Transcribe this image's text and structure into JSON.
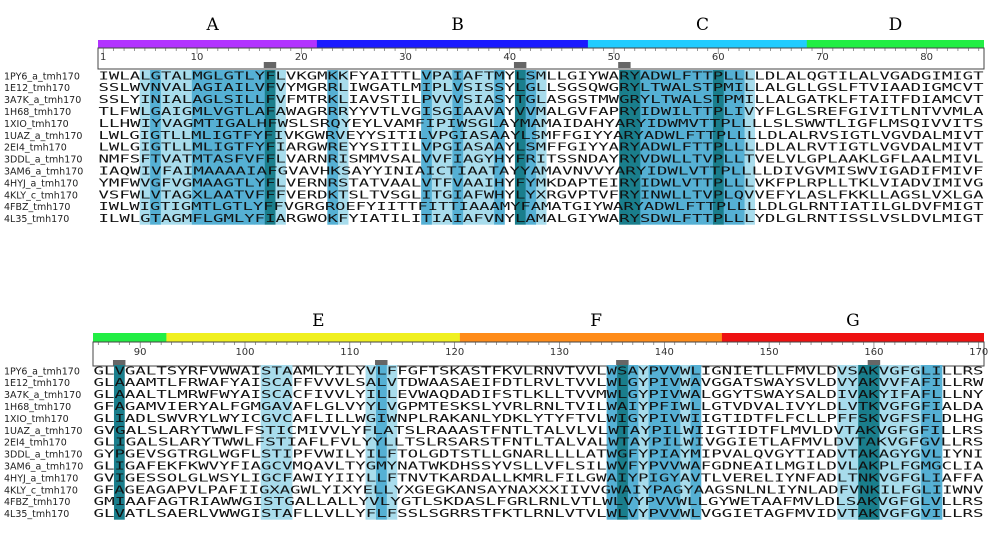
{
  "names": [
    "1PY6_a_tmh170",
    "1E12_tmh170",
    "3A7K_a_tmh170",
    "1H68_tmh170",
    "1XIO_tmh170",
    "1UAZ_a_tmh170",
    "2EI4_tmh170",
    "3DDL_a_tmh170",
    "3AM6_a_tmh170",
    "4HYJ_a_tmh170",
    "4KLY_c_tmh170",
    "4FBZ_tmh170",
    "4L35_tmh170"
  ],
  "colors": {
    "dark": "#1a7e8c",
    "mid": "#55b0d4",
    "light": "#a8dcec",
    "pale": "#cfeaf3"
  },
  "blocks": [
    {
      "start": 1,
      "end": 85,
      "rows": [
        "IWLALGTALMGLGTLYFLVKGMKKFYAITTLVPAIAFTMYLSMLLGIYWARYADWLFTTPLLLLDLALQGTILALVGADGIMIGT",
        "SSLWVNVALAGIAILVFVYMGRRLIWGATLMIPLVSISSYLGLLSGSQWGRYLTWALSTPMILLALGLLGSLFTVIAADIGMCVT",
        "SSLYINIALAGLSILLFVFMTRKLIAVSTILPVVVSIASYTGLASGSTMWGRYLTWALSTPMILLALGATKLFTAITFDIAMCVT",
        "TLFWLGAIGMLVGTLAFAWAGRRRYYVTLVGISGIAAVAYVVMALGVFAPRYIDWILTTPLIVYFLGLSREFGIVITLNTVVMLA",
        "LLHWIYVAGMTIGALHFWSLSRQYEYLVAMFIPIWSGLAYMAMAIDAHYARYIDWMVTTPLLLLSLSWWTLIGFLMSQIVVITS",
        "LWLGIGTLLMLIGTFYFIVKGWRVEYYSITILVPGIASAAYLSMFFGIYYARYADWLFTTPLLLLDLALRVSIGTLVGVDALMIVT",
        "LWLGIGTLLMLIGTFYFIARGWREYYSITILVPGIASAAYLSMFFGIYYARYADWLFTTPLLLLDLALRVTIGTLVGVDALMIVT",
        "NMFSFTVATMTASFVFFLVARNRISMMVSALVVFIAGYHYFRITSSNDAYRYVDWLLTVPLLTVELVLGPLAAKLGFLAALMIVL",
        "IAQWIVFAIMAAAAIAFGVAVHKSAYYINIAICTIAATAYYAMAVNVVYARYIDWLVTTPLLLLDIVGVMISWVIGADIFMIVF",
        "YMFWVGFVGMAAGTLYFLVERNRSTATVAALVTFVAAIHYFYMKDAPTEIRYIDWLVTTPLLLVKFPLRPLLTKLVIADVIMIVG",
        "VSFWLVTAGXLAATVFFFVERDKTSLTVSGLITGIAFWHYLYXRGVPTVFRYINWLLTVPLQVVEFYLASLFKKLLAGSLVXLGA",
        "IWLWIGTIGMTLGTLYFFVGRGROEFYIITTFITTIAAAMYFAMATGIYWARYADWLFTTPLLLLDLGLRNTIATILGLDVFMIGT",
        "ILWLGTAGMFLGMLYFIARGWOKFYIATILITIAIAFVNYLAMALGIYWARYSDWLFTTPLLLYDLGLRNTISSLVSLDVLMIGT"
      ],
      "dark": [
        17,
        41,
        51,
        52,
        60
      ],
      "mid": [
        6,
        10,
        11,
        12,
        13,
        14,
        15,
        16,
        23,
        32,
        35,
        39,
        42,
        53,
        54,
        55,
        56,
        57,
        58,
        59,
        61,
        62
      ],
      "light": [
        5,
        7,
        8,
        9,
        18,
        24,
        33,
        34,
        36,
        37,
        38,
        43,
        63
      ],
      "sections": [
        {
          "label": "A",
          "start": 1,
          "end": 22,
          "color": "#b233ff"
        },
        {
          "label": "B",
          "start": 22,
          "end": 48,
          "color": "#1a1aff"
        },
        {
          "label": "C",
          "start": 48,
          "end": 69,
          "color": "#22ccff"
        },
        {
          "label": "D",
          "start": 69,
          "end": 85,
          "color": "#22ee44"
        }
      ],
      "ticks": [
        "1",
        "10",
        "20",
        "30",
        "40",
        "50",
        "60",
        "70",
        "80"
      ],
      "markers": [
        17,
        41,
        51
      ]
    },
    {
      "start": 86,
      "end": 170,
      "rows": [
        "GLVGALTSYRFVWWAISTAAMLYILYVLFFGFTSKASTFKVLRNVTVVLWSAYPVVWLIGNIETLLFMVLDVSAKVGFGLILLRS",
        "GLAAAMTLFRWAFYAISCAFFVVVLSALVTDWAASAEIFDTLRVLTVVLWLGYPIVWAVGGATSWAYSVLDVYAKVVFAFILLRW",
        "GLAAALTLMRWFWYAISCACFIVVLYILLEVWAQDADIFSTLKLLTVVMWLGYPIVWALGGYTSWAYSALDIVAKYIFAFLLLNY",
        "GFAGAMVIERYALFGMGAVAFLGLVYYLVGPMTESKSLYVRLRNLTVILWAIYPFIWLLGTVDVALIVYLDLVTKVGFGFIALDA",
        "GLIADLSWVRYLWYICGVCAFLILLWGIWNPLRAKANLYDKLYTYFTVLWIGYPIVWIIGTIDTFLFCLLPFFSKVGFSFLDLHG",
        "GVGALSLARYTWWLFSTICMIVVLYFLATSLRAAASTFNTLTALVLVLWTAYPILWIIGTIDTFLMVLDVTAKVGFGFILLRS",
        "GLIGALSLARYTWWLFSTIAFLFVLYYLLTSLRSARSTFNTLTALVALWTAYPILWIVGGIETLAFMVLDVTAKVGFGVLLRS",
        "GYPGEVSGTRGLWGFLSTIPFVWILYILFTOLGDTSTLLGNARLLLLATWGFYPIAYMIPVALQVGYTIADVTAKAGYGVLIYNI",
        "GLIGAFEKFKWVYFIAGCVMQAVLTYGMYNATWKDHSSYVSLLVFLSILWVFYPVVWAFGDNEAILMGILDVLAKPLFGMGCLIA",
        "GVIGESSOLGLWSYLIGCFAWIYIIYLLFTNVTKARDALLKMRLFILGWAIYPIGYAVTLVERELIYNFADLTNKVGFGLIAFFA",
        "GFAGEAGAPVLPAFIIGXAGWLYIXYELLYXGEGKANSAYNAXXXIIVVGWAIYPAGYAAGSNLNLIYNLADFVNKILFGLIIWNV",
        "GMIAAFAGTRIAWWGISTGALLALLYVLYGTLSKDASLFGRLRNLVTLWLVYPVVWLLGYWETAAFMVLDLSAKVGFGLVLLRS",
        "GLVATLSAERLVWWGISTAFLLVLLYFLFSSLSGRRSTFKTLRNLVTVLWLVYPVVWLVGGIETAGFMVIDVTAKVGFGVILLRS"
      ],
      "dark": [
        88,
        136,
        159,
        160
      ],
      "mid": [
        113,
        135,
        137,
        139,
        140,
        141,
        143,
        165,
        166
      ],
      "light": [
        102,
        103,
        104,
        112,
        114,
        138,
        142,
        157,
        158,
        161,
        162,
        163,
        164
      ],
      "sections": [
        {
          "label": "",
          "start": 86,
          "end": 93,
          "color": "#22ee44"
        },
        {
          "label": "E",
          "start": 93,
          "end": 121,
          "color": "#f0f020"
        },
        {
          "label": "F",
          "start": 121,
          "end": 146,
          "color": "#ff8c1a"
        },
        {
          "label": "G",
          "start": 146,
          "end": 170,
          "color": "#ee1111"
        }
      ],
      "ticks": [
        "90",
        "100",
        "110",
        "120",
        "130",
        "140",
        "150",
        "160",
        "170"
      ],
      "markers": [
        88,
        113,
        136,
        160
      ]
    }
  ]
}
